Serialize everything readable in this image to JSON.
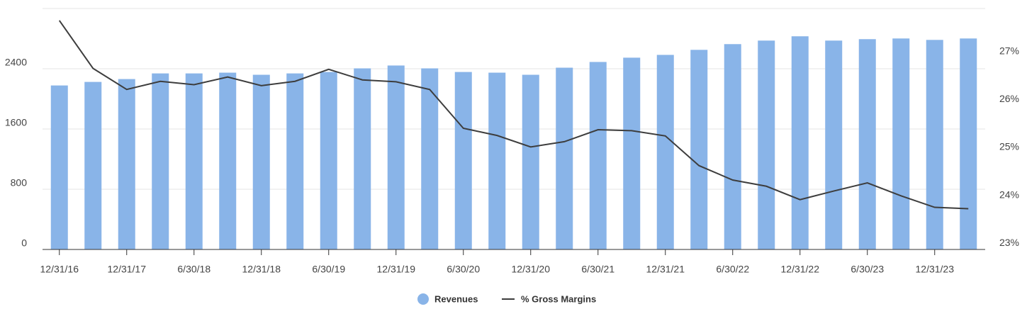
{
  "chart_data": {
    "type": "bar-line",
    "categories": [
      "12/31/16",
      null,
      "12/31/17",
      null,
      "6/30/18",
      null,
      "12/31/18",
      null,
      "6/30/19",
      null,
      "12/31/19",
      null,
      "6/30/20",
      null,
      "12/31/20",
      null,
      "6/30/21",
      null,
      "12/31/21",
      null,
      "6/30/22",
      null,
      "12/31/22",
      null,
      "6/30/23",
      null,
      "12/31/23",
      null
    ],
    "series": [
      {
        "name": "Revenues",
        "type": "bar",
        "color": "#89b4e8",
        "values": [
          2178,
          2225,
          2263,
          2338,
          2338,
          2348,
          2320,
          2338,
          2357,
          2405,
          2443,
          2405,
          2357,
          2348,
          2320,
          2414,
          2490,
          2547,
          2584,
          2651,
          2727,
          2774,
          2831,
          2774,
          2793,
          2802,
          2783,
          2802
        ]
      },
      {
        "name": "% Gross Margins",
        "type": "line",
        "axis": "y2",
        "color": "#3d3d3d",
        "values": [
          27.65,
          26.65,
          26.21,
          26.38,
          26.31,
          26.47,
          26.29,
          26.38,
          26.63,
          26.41,
          26.37,
          26.21,
          25.4,
          25.25,
          25.01,
          25.12,
          25.37,
          25.35,
          25.24,
          24.62,
          24.32,
          24.19,
          23.91,
          24.09,
          24.26,
          23.99,
          23.75,
          23.72
        ]
      }
    ],
    "ylim": [
      0,
      3200
    ],
    "yticks": [
      0,
      800,
      1600,
      2400
    ],
    "y2lim": [
      22.87,
      27.9
    ],
    "y2ticks": [
      {
        "value": 23,
        "label": "23%"
      },
      {
        "value": 24,
        "label": "24%"
      },
      {
        "value": 25,
        "label": "25%"
      },
      {
        "value": 26,
        "label": "26%"
      },
      {
        "value": 27,
        "label": "27%"
      }
    ],
    "grid": true,
    "legend": "bottom"
  }
}
